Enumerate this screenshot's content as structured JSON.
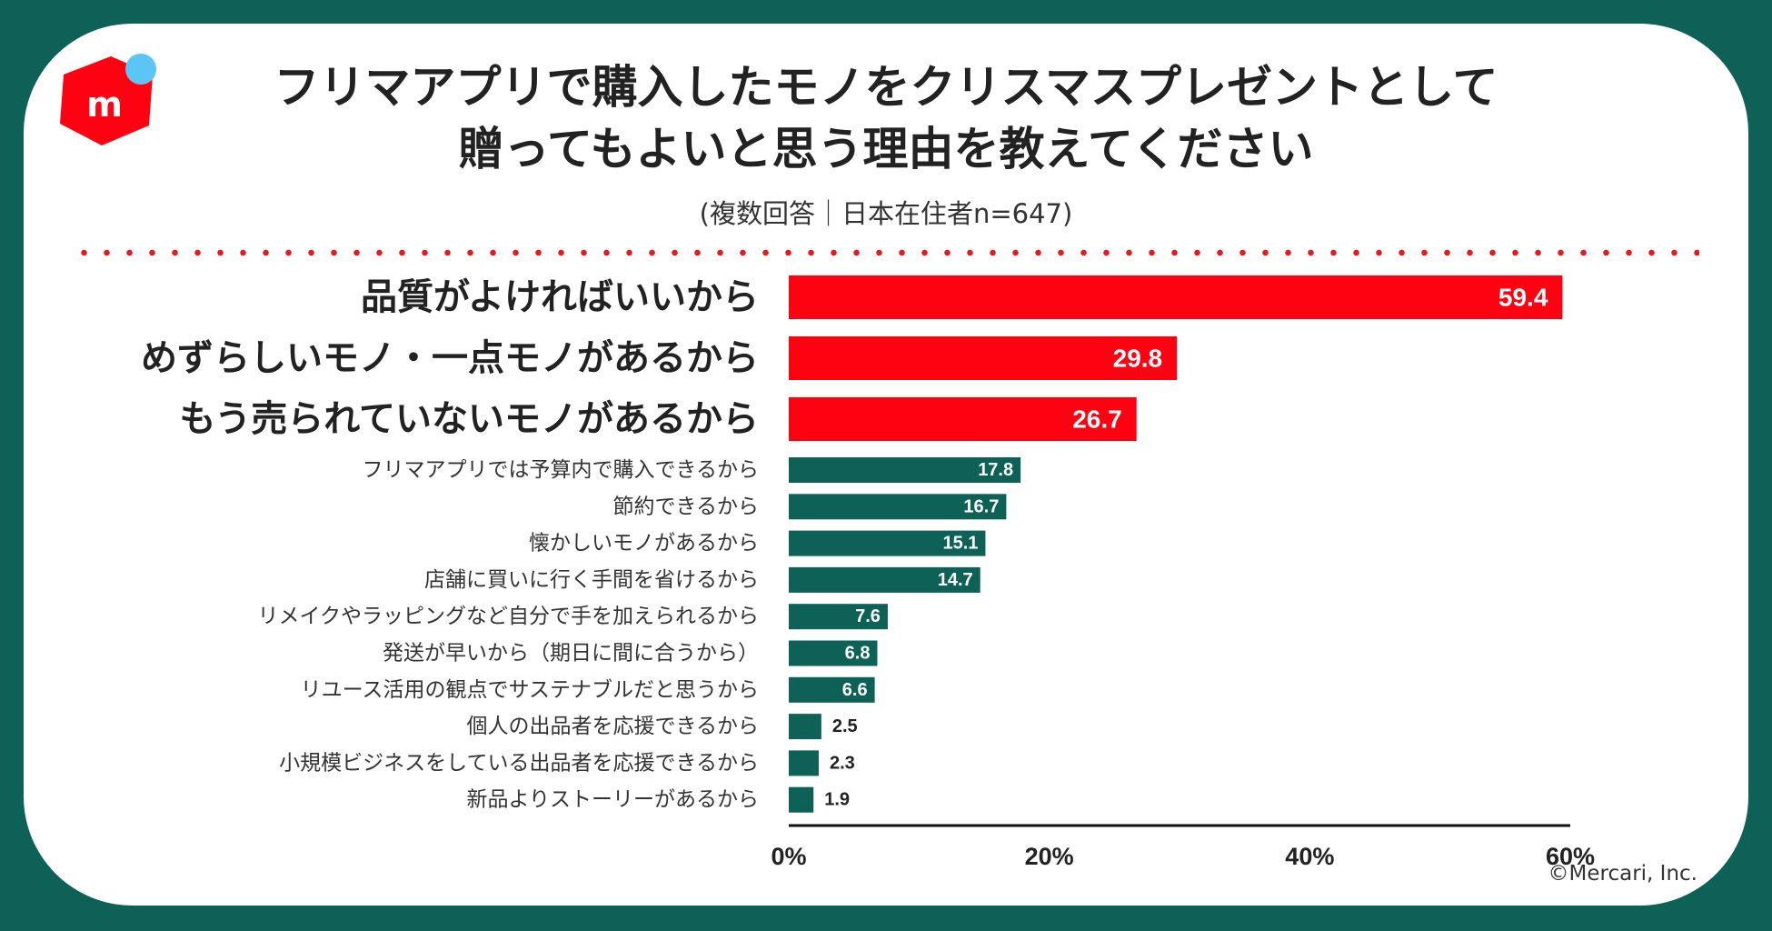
{
  "header": {
    "title_line1": "フリマアプリで購入したモノをクリスマスプレゼントとして",
    "title_line2": "贈ってもよいと思う理由を教えてください",
    "subtitle": "(複数回答｜日本在住者n=647)",
    "logo_letter": "m"
  },
  "footer": {
    "copyright": "©Mercari, Inc."
  },
  "colors": {
    "accent": "#ff0211",
    "bar_secondary": "#0e6157",
    "frame": "#0e6157",
    "logo_dot": "#5bc6f5"
  },
  "chart_data": {
    "type": "bar",
    "orientation": "horizontal",
    "categories": [
      "品質がよければいいから",
      "めずらしいモノ・一点モノがあるから",
      "もう売られていないモノがあるから",
      "フリマアプリでは予算内で購入できるから",
      "節約できるから",
      "懐かしいモノがあるから",
      "店舗に買いに行く手間を省けるから",
      "リメイクやラッピングなど自分で手を加えられるから",
      "発送が早いから（期日に間に合うから）",
      "リユース活用の観点でサステナブルだと思うから",
      "個人の出品者を応援できるから",
      "小規模ビジネスをしている出品者を応援できるから",
      "新品よりストーリーがあるから"
    ],
    "values": [
      59.4,
      29.8,
      26.7,
      17.8,
      16.7,
      15.1,
      14.7,
      7.6,
      6.8,
      6.6,
      2.5,
      2.3,
      1.9
    ],
    "value_labels": [
      "59.4",
      "29.8",
      "26.7",
      "17.8",
      "16.7",
      "15.1",
      "14.7",
      "7.6",
      "6.8",
      "6.6",
      "2.5",
      "2.3",
      "1.9"
    ],
    "highlighted_count": 3,
    "xlim": [
      0,
      60
    ],
    "xticks": [
      "0%",
      "20%",
      "40%",
      "60%"
    ],
    "xlabel": "",
    "ylabel": "",
    "grid": false
  }
}
